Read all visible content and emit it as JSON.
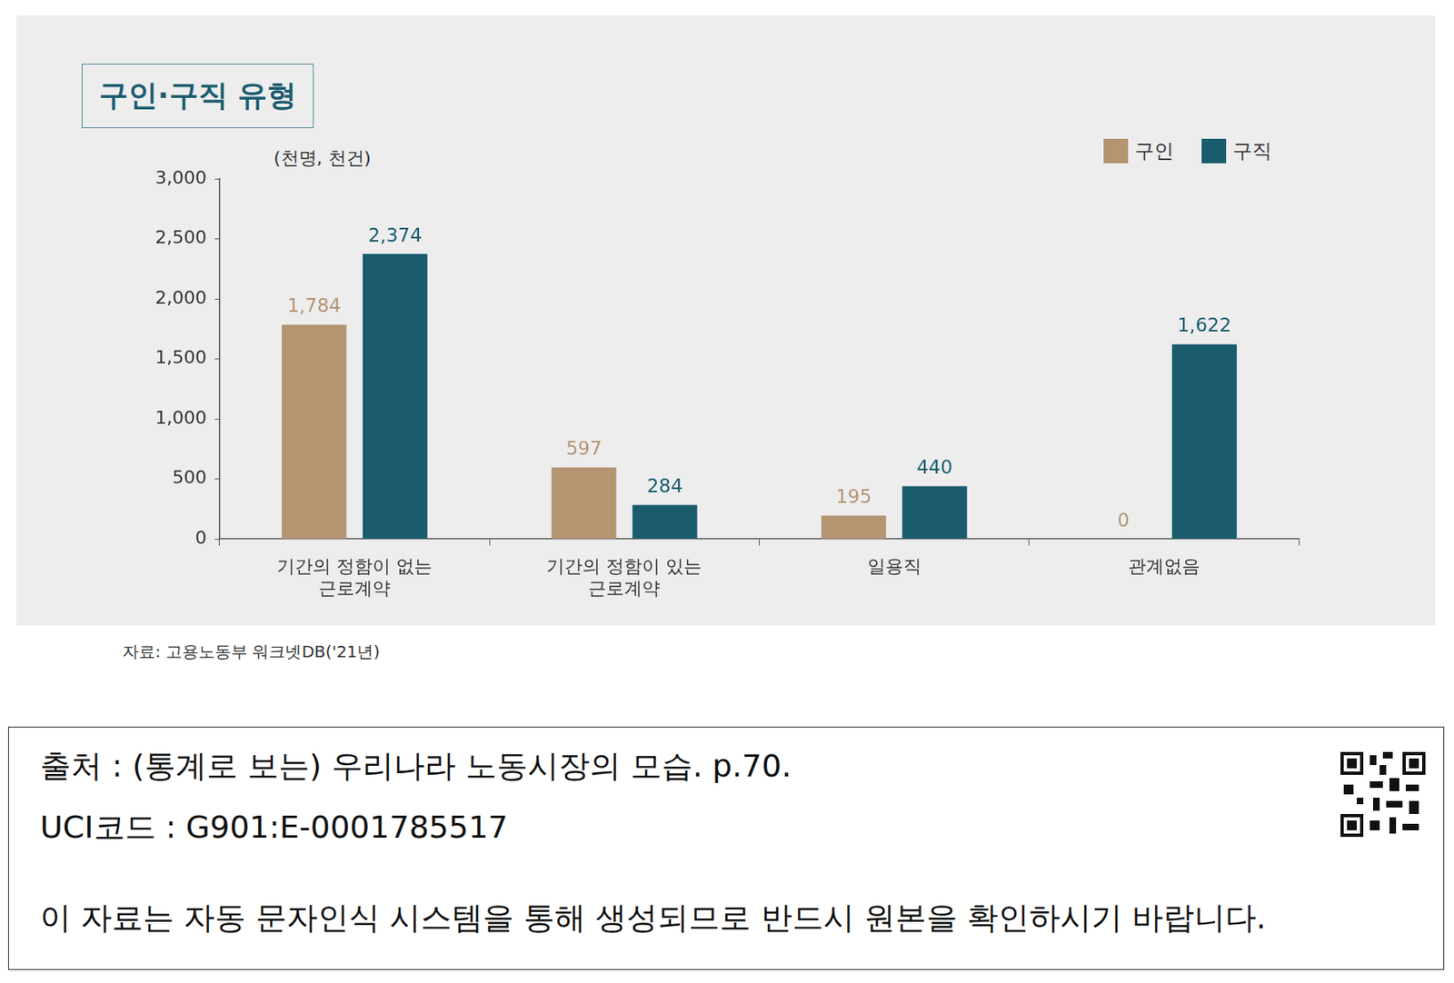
{
  "chart_data": {
    "type": "bar",
    "title": "구인·구직 유형",
    "y_label": "(천명, 천건)",
    "categories": [
      "기간의 정함이 없는 근로계약",
      "기간의 정함이 있는 근로계약",
      "일용직",
      "관계없음"
    ],
    "series": [
      {
        "name": "구인",
        "color": "#b59472",
        "values": [
          1784,
          597,
          195,
          0
        ],
        "value_labels": [
          "1,784",
          "597",
          "195",
          "0"
        ]
      },
      {
        "name": "구직",
        "color": "#1a5c6e",
        "values": [
          2374,
          284,
          440,
          1622
        ],
        "value_labels": [
          "2,374",
          "284",
          "440",
          "1,622"
        ]
      }
    ],
    "ylim": [
      0,
      3000
    ],
    "yticks": [
      0,
      500,
      {
        "value": 1000,
        "label": "1,000"
      },
      {
        "value": 1500,
        "label": "1,500"
      },
      {
        "value": 2000,
        "label": "2,000"
      },
      {
        "value": 2500,
        "label": "2,500"
      },
      {
        "value": 3000,
        "label": "3,000"
      }
    ],
    "grid": false,
    "legend": "top-right",
    "data_labels": true,
    "source": "자료: 고용노동부 워크넷DB('21년)"
  },
  "footer": {
    "lines": [
      "출처 : (통계로 보는) 우리나라 노동시장의 모습. p.70.",
      "UCI코드 : G901:E-0001785517",
      "이 자료는 자동 문자인식 시스템을 통해 생성되므로 반드시 원본을 확인하시기 바랍니다."
    ]
  }
}
